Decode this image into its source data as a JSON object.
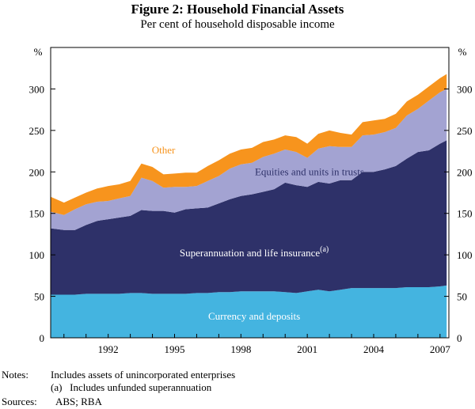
{
  "chart_data": {
    "type": "area",
    "stacked": true,
    "title": "Figure 2: Household Financial Assets",
    "subtitle": "Per cent of household disposable income",
    "ylabel": "%",
    "ylim": [
      0,
      350
    ],
    "xlim": [
      1989.4,
      2007.4
    ],
    "yticks": [
      0,
      50,
      100,
      150,
      200,
      250,
      300
    ],
    "xticks": [
      1992,
      1995,
      1998,
      2001,
      2004,
      2007
    ],
    "x": [
      1989.5,
      1990.0,
      1990.5,
      1991.0,
      1991.5,
      1992.0,
      1992.5,
      1993.0,
      1993.5,
      1994.0,
      1994.5,
      1995.0,
      1995.5,
      1996.0,
      1996.5,
      1997.0,
      1997.5,
      1998.0,
      1998.5,
      1999.0,
      1999.5,
      2000.0,
      2000.5,
      2001.0,
      2001.5,
      2002.0,
      2002.5,
      2003.0,
      2003.5,
      2004.0,
      2004.5,
      2005.0,
      2005.5,
      2006.0,
      2006.5,
      2007.0,
      2007.3
    ],
    "series": [
      {
        "name": "Currency and deposits",
        "color": "#44b4e0",
        "values": [
          52,
          52,
          52,
          53,
          53,
          53,
          53,
          54,
          54,
          53,
          53,
          53,
          53,
          54,
          54,
          55,
          55,
          56,
          56,
          56,
          56,
          55,
          54,
          56,
          58,
          56,
          58,
          60,
          60,
          60,
          60,
          60,
          61,
          61,
          61,
          62,
          63
        ]
      },
      {
        "name": "Superannuation and life insurance",
        "color": "#2e3169",
        "values": [
          80,
          78,
          78,
          83,
          88,
          90,
          92,
          93,
          100,
          100,
          100,
          98,
          102,
          102,
          103,
          107,
          112,
          115,
          117,
          120,
          123,
          132,
          130,
          126,
          130,
          130,
          132,
          130,
          140,
          140,
          143,
          147,
          155,
          163,
          165,
          172,
          175
        ]
      },
      {
        "name": "Equities and units in trusts",
        "color": "#a3a3d2",
        "values": [
          20,
          18,
          25,
          25,
          23,
          22,
          23,
          24,
          39,
          36,
          28,
          31,
          27,
          27,
          32,
          33,
          37,
          38,
          38,
          42,
          43,
          40,
          40,
          35,
          40,
          45,
          40,
          40,
          44,
          45,
          45,
          46,
          52,
          52,
          60,
          62,
          62
        ]
      },
      {
        "name": "Other",
        "color": "#f7941d",
        "values": [
          18,
          15,
          14,
          14,
          16,
          18,
          17,
          18,
          17,
          17,
          16,
          16,
          17,
          16,
          18,
          19,
          18,
          18,
          18,
          18,
          17,
          17,
          18,
          17,
          18,
          19,
          17,
          15,
          16,
          17,
          16,
          17,
          17,
          17,
          17,
          17,
          18
        ]
      }
    ],
    "series_labels": {
      "other": "Other",
      "equities": "Equities and units in trusts",
      "super": "Superannuation and life insurance",
      "super_sup": "(a)",
      "currency": "Currency and deposits"
    }
  },
  "notes": {
    "notes_label": "Notes:",
    "line1": "Includes assets of unincorporated enterprises",
    "line2": "(a)   Includes unfunded superannuation",
    "sources_label": "Sources:",
    "sources": "ABS; RBA"
  }
}
